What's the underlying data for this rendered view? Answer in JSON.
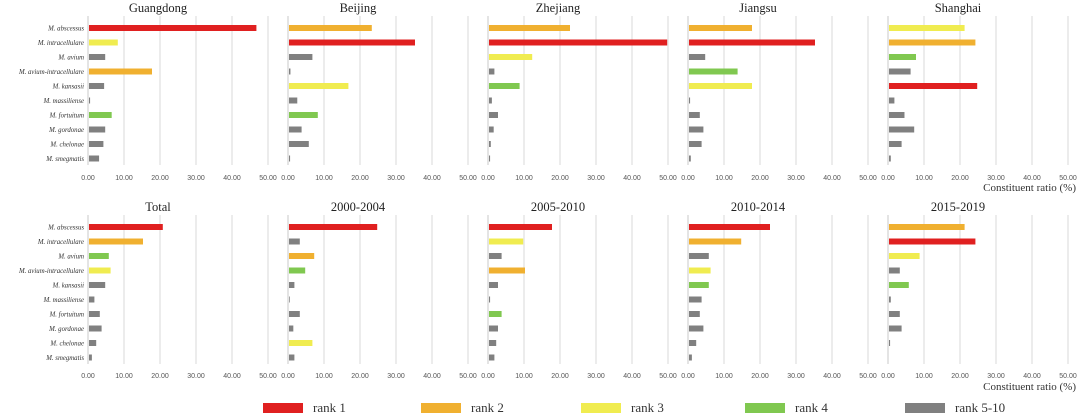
{
  "figure": {
    "xlabel": "Constituent ratio (%)"
  },
  "legend": [
    {
      "label": "rank 1",
      "color": "#e02020"
    },
    {
      "label": "rank 2",
      "color": "#f0b030"
    },
    {
      "label": "rank 3",
      "color": "#f0ec50"
    },
    {
      "label": "rank 4",
      "color": "#80c850"
    },
    {
      "label": "rank 5-10",
      "color": "#808080"
    }
  ],
  "chart_data": [
    {
      "type": "bar",
      "orientation": "horizontal",
      "title": "Guangdong",
      "categories": [
        "M. abscessus",
        "M. intracellulare",
        "M. avium",
        "M. avium-intracellulare",
        "M. kansasii",
        "M. massiliense",
        "M. fortuitum",
        "M. gordonae",
        "M. chelonae",
        "M. smegmatis"
      ],
      "values": [
        46.5,
        8.0,
        4.5,
        17.5,
        4.2,
        0.3,
        6.3,
        4.5,
        4.0,
        2.8
      ],
      "ranks": [
        "rank 1",
        "rank 3",
        "rank 5-10",
        "rank 2",
        "rank 5-10",
        "rank 5-10",
        "rank 4",
        "rank 5-10",
        "rank 5-10",
        "rank 5-10"
      ],
      "xticks": [
        "0.00",
        "10.00",
        "20.00",
        "30.00",
        "40.00",
        "50.00"
      ],
      "xlim": [
        0,
        50
      ]
    },
    {
      "type": "bar",
      "orientation": "horizontal",
      "title": "Beijing",
      "categories": [
        "M. abscessus",
        "M. intracellulare",
        "M. avium",
        "M. avium-intracellulare",
        "M. kansasii",
        "M. massiliense",
        "M. fortuitum",
        "M. gordonae",
        "M. chelonae",
        "M. smegmatis"
      ],
      "values": [
        23.0,
        35.0,
        6.5,
        0.4,
        16.5,
        2.3,
        8.0,
        3.5,
        5.5,
        0.3
      ],
      "ranks": [
        "rank 2",
        "rank 1",
        "rank 5-10",
        "rank 5-10",
        "rank 3",
        "rank 5-10",
        "rank 4",
        "rank 5-10",
        "rank 5-10",
        "rank 5-10"
      ],
      "xticks": [
        "0.00",
        "10.00",
        "20.00",
        "30.00",
        "40.00",
        "50.00"
      ],
      "xlim": [
        0,
        50
      ]
    },
    {
      "type": "bar",
      "orientation": "horizontal",
      "title": "Zhejiang",
      "categories": [
        "M. abscessus",
        "M. intracellulare",
        "M. avium",
        "M. avium-intracellulare",
        "M. kansasii",
        "M. massiliense",
        "M. fortuitum",
        "M. gordonae",
        "M. chelonae",
        "M. smegmatis"
      ],
      "values": [
        22.5,
        49.5,
        12.0,
        1.5,
        8.5,
        0.8,
        2.5,
        1.3,
        0.5,
        0.3
      ],
      "ranks": [
        "rank 2",
        "rank 1",
        "rank 3",
        "rank 5-10",
        "rank 4",
        "rank 5-10",
        "rank 5-10",
        "rank 5-10",
        "rank 5-10",
        "rank 5-10"
      ],
      "xticks": [
        "0.00",
        "10.00",
        "20.00",
        "30.00",
        "40.00",
        "50.00"
      ],
      "xlim": [
        0,
        50
      ]
    },
    {
      "type": "bar",
      "orientation": "horizontal",
      "title": "Jiangsu",
      "categories": [
        "M. abscessus",
        "M. intracellulare",
        "M. avium",
        "M. avium-intracellulare",
        "M. kansasii",
        "M. massiliense",
        "M. fortuitum",
        "M. gordonae",
        "M. chelonae",
        "M. smegmatis"
      ],
      "values": [
        17.5,
        35.0,
        4.5,
        13.5,
        17.5,
        0.3,
        3.0,
        4.0,
        3.5,
        0.5
      ],
      "ranks": [
        "rank 2",
        "rank 1",
        "rank 5-10",
        "rank 4",
        "rank 3",
        "rank 5-10",
        "rank 5-10",
        "rank 5-10",
        "rank 5-10",
        "rank 5-10"
      ],
      "xticks": [
        "0.00",
        "10.00",
        "20.00",
        "30.00",
        "40.00",
        "50.00"
      ],
      "xlim": [
        0,
        50
      ]
    },
    {
      "type": "bar",
      "orientation": "horizontal",
      "title": "Shanghai",
      "categories": [
        "M. abscessus",
        "M. intracellulare",
        "M. avium",
        "M. avium-intracellulare",
        "M. kansasii",
        "M. massiliense",
        "M. fortuitum",
        "M. gordonae",
        "M. chelonae",
        "M. smegmatis"
      ],
      "values": [
        21.0,
        24.0,
        7.5,
        6.0,
        24.5,
        1.5,
        4.3,
        7.0,
        3.5,
        0.5
      ],
      "ranks": [
        "rank 3",
        "rank 2",
        "rank 4",
        "rank 5-10",
        "rank 1",
        "rank 5-10",
        "rank 5-10",
        "rank 5-10",
        "rank 5-10",
        "rank 5-10"
      ],
      "xticks": [
        "0.00",
        "10.00",
        "20.00",
        "30.00",
        "40.00",
        "50.00"
      ],
      "xlim": [
        0,
        50
      ]
    },
    {
      "type": "bar",
      "orientation": "horizontal",
      "title": "Total",
      "categories": [
        "M. abscessus",
        "M. intracellulare",
        "M. avium",
        "M. avium-intracellulare",
        "M. kansasii",
        "M. massiliense",
        "M. fortuitum",
        "M. gordonae",
        "M. chelonae",
        "M. smegmatis"
      ],
      "values": [
        20.5,
        15.0,
        5.5,
        6.0,
        4.5,
        1.5,
        3.0,
        3.5,
        2.0,
        0.8
      ],
      "ranks": [
        "rank 1",
        "rank 2",
        "rank 4",
        "rank 3",
        "rank 5-10",
        "rank 5-10",
        "rank 5-10",
        "rank 5-10",
        "rank 5-10",
        "rank 5-10"
      ],
      "xticks": [
        "0.00",
        "10.00",
        "20.00",
        "30.00",
        "40.00",
        "50.00"
      ],
      "xlim": [
        0,
        50
      ]
    },
    {
      "type": "bar",
      "orientation": "horizontal",
      "title": "2000-2004",
      "categories": [
        "M. abscessus",
        "M. intracellulare",
        "M. avium",
        "M. avium-intracellulare",
        "M. kansasii",
        "M. massiliense",
        "M. fortuitum",
        "M. gordonae",
        "M. chelonae",
        "M. smegmatis"
      ],
      "values": [
        24.5,
        3.0,
        7.0,
        4.5,
        1.5,
        0.2,
        3.0,
        1.2,
        6.5,
        1.5
      ],
      "ranks": [
        "rank 1",
        "rank 5-10",
        "rank 2",
        "rank 4",
        "rank 5-10",
        "rank 5-10",
        "rank 5-10",
        "rank 5-10",
        "rank 3",
        "rank 5-10"
      ],
      "xticks": [
        "0.00",
        "10.00",
        "20.00",
        "30.00",
        "40.00",
        "50.00"
      ],
      "xlim": [
        0,
        50
      ]
    },
    {
      "type": "bar",
      "orientation": "horizontal",
      "title": "2005-2010",
      "categories": [
        "M. abscessus",
        "M. intracellulare",
        "M. avium",
        "M. avium-intracellulare",
        "M. kansasii",
        "M. massiliense",
        "M. fortuitum",
        "M. gordonae",
        "M. chelonae",
        "M. smegmatis"
      ],
      "values": [
        17.5,
        9.5,
        3.5,
        10.0,
        2.5,
        0.3,
        3.5,
        2.5,
        2.0,
        1.5
      ],
      "ranks": [
        "rank 1",
        "rank 3",
        "rank 5-10",
        "rank 2",
        "rank 5-10",
        "rank 5-10",
        "rank 4",
        "rank 5-10",
        "rank 5-10",
        "rank 5-10"
      ],
      "xticks": [
        "0.00",
        "10.00",
        "20.00",
        "30.00",
        "40.00",
        "50.00"
      ],
      "xlim": [
        0,
        50
      ]
    },
    {
      "type": "bar",
      "orientation": "horizontal",
      "title": "2010-2014",
      "categories": [
        "M. abscessus",
        "M. intracellulare",
        "M. avium",
        "M. avium-intracellulare",
        "M. kansasii",
        "M. massiliense",
        "M. fortuitum",
        "M. gordonae",
        "M. chelonae",
        "M. smegmatis"
      ],
      "values": [
        22.5,
        14.5,
        5.5,
        6.0,
        5.5,
        3.5,
        3.0,
        4.0,
        2.0,
        0.8
      ],
      "ranks": [
        "rank 1",
        "rank 2",
        "rank 5-10",
        "rank 3",
        "rank 4",
        "rank 5-10",
        "rank 5-10",
        "rank 5-10",
        "rank 5-10",
        "rank 5-10"
      ],
      "xticks": [
        "0.00",
        "10.00",
        "20.00",
        "30.00",
        "40.00",
        "50.00"
      ],
      "xlim": [
        0,
        50
      ]
    },
    {
      "type": "bar",
      "orientation": "horizontal",
      "title": "2015-2019",
      "categories": [
        "M. abscessus",
        "M. intracellulare",
        "M. avium",
        "M. avium-intracellulare",
        "M. kansasii",
        "M. massiliense",
        "M. fortuitum",
        "M. gordonae",
        "M. chelonae",
        "M. smegmatis"
      ],
      "values": [
        21.0,
        24.0,
        8.5,
        3.0,
        5.5,
        0.5,
        3.0,
        3.5,
        0.3,
        0.0
      ],
      "ranks": [
        "rank 2",
        "rank 1",
        "rank 3",
        "rank 5-10",
        "rank 4",
        "rank 5-10",
        "rank 5-10",
        "rank 5-10",
        "rank 5-10",
        "rank 5-10"
      ],
      "xticks": [
        "0.00",
        "10.00",
        "20.00",
        "30.00",
        "40.00",
        "50.00"
      ],
      "xlim": [
        0,
        50
      ]
    }
  ]
}
